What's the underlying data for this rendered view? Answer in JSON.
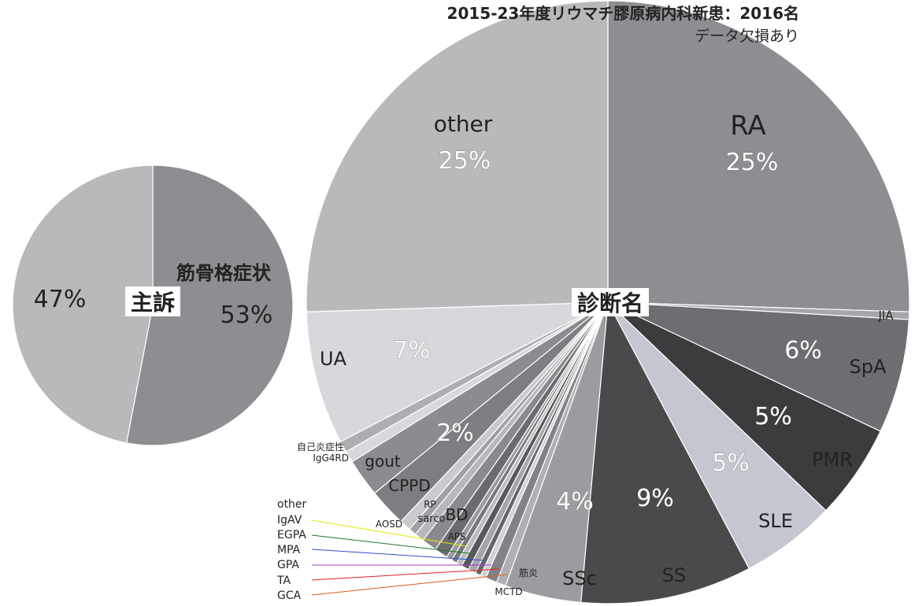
{
  "chart_data": [
    {
      "type": "pie",
      "title": "2015-23年度リウマチ膠原病内科新患：2016名",
      "subtitle": "データ欠損あり",
      "center_label": "診断名",
      "slices": [
        {
          "label": "RA",
          "value": 25,
          "pct_label": "25%",
          "color": "#8e8e92"
        },
        {
          "label": "JIA",
          "value": 0.4,
          "color": "#a6a6aa"
        },
        {
          "label": "SpA",
          "value": 6,
          "pct_label": "6%",
          "color": "#6d6d72"
        },
        {
          "label": "PMR",
          "value": 5,
          "pct_label": "5%",
          "color": "#3c3c3e"
        },
        {
          "label": "SLE",
          "value": 5,
          "pct_label": "5%",
          "color": "#c4c7d0"
        },
        {
          "label": "SS",
          "value": 9,
          "pct_label": "9%",
          "color": "#4a4a4d"
        },
        {
          "label": "SSc",
          "value": 4,
          "pct_label": "4%",
          "color": "#9c9ca0"
        },
        {
          "label": "MCTD",
          "value": 0.5,
          "color": "#b0b0b4"
        },
        {
          "label": "筋炎",
          "value": 0.6,
          "color": "#828286"
        },
        {
          "label": "GCA",
          "value": 0.3,
          "color": "#d2d2d6"
        },
        {
          "label": "TA",
          "value": 0.3,
          "color": "#66666a"
        },
        {
          "label": "GPA",
          "value": 0.4,
          "color": "#a6a6aa"
        },
        {
          "label": "MPA",
          "value": 0.4,
          "color": "#58585c"
        },
        {
          "label": "EGPA",
          "value": 0.3,
          "color": "#bcbcc0"
        },
        {
          "label": "IgAV",
          "value": 0.3,
          "color": "#78787c"
        },
        {
          "label": "other",
          "value": 0.3,
          "color": "#9a9a9e"
        },
        {
          "label": "APS",
          "value": 0.7,
          "color": "#6b6b6f"
        },
        {
          "label": "BD",
          "value": 0.8,
          "color": "#8a8a8e"
        },
        {
          "label": "sarco",
          "value": 0.5,
          "color": "#b8b8bc"
        },
        {
          "label": "RP",
          "value": 0.4,
          "color": "#a0a0a4"
        },
        {
          "label": "AOSD",
          "value": 0.6,
          "color": "#cacace"
        },
        {
          "label": "CPPD",
          "value": 2,
          "color": "#7e7e82"
        },
        {
          "label": "gout",
          "value": 2,
          "pct_label": "2%",
          "color": "#8c8c90"
        },
        {
          "label": "IgG4RD",
          "value": 0.6,
          "color": "#d8d8dc"
        },
        {
          "label": "自己炎症性",
          "value": 0.6,
          "color": "#aeaeb2"
        },
        {
          "label": "UA",
          "value": 7,
          "pct_label": "7%",
          "color": "#d7d8db"
        },
        {
          "label": "other",
          "value": 25,
          "pct_label": "25%",
          "color": "#b9b9bb"
        }
      ]
    },
    {
      "type": "pie",
      "center_label": "主訴",
      "slices": [
        {
          "label": "筋骨格症状",
          "value": 53,
          "pct_label": "53%",
          "color": "#8e8e92"
        },
        {
          "label": "",
          "value": 47,
          "pct_label": "47%",
          "color": "#b9b9bb"
        }
      ]
    }
  ]
}
